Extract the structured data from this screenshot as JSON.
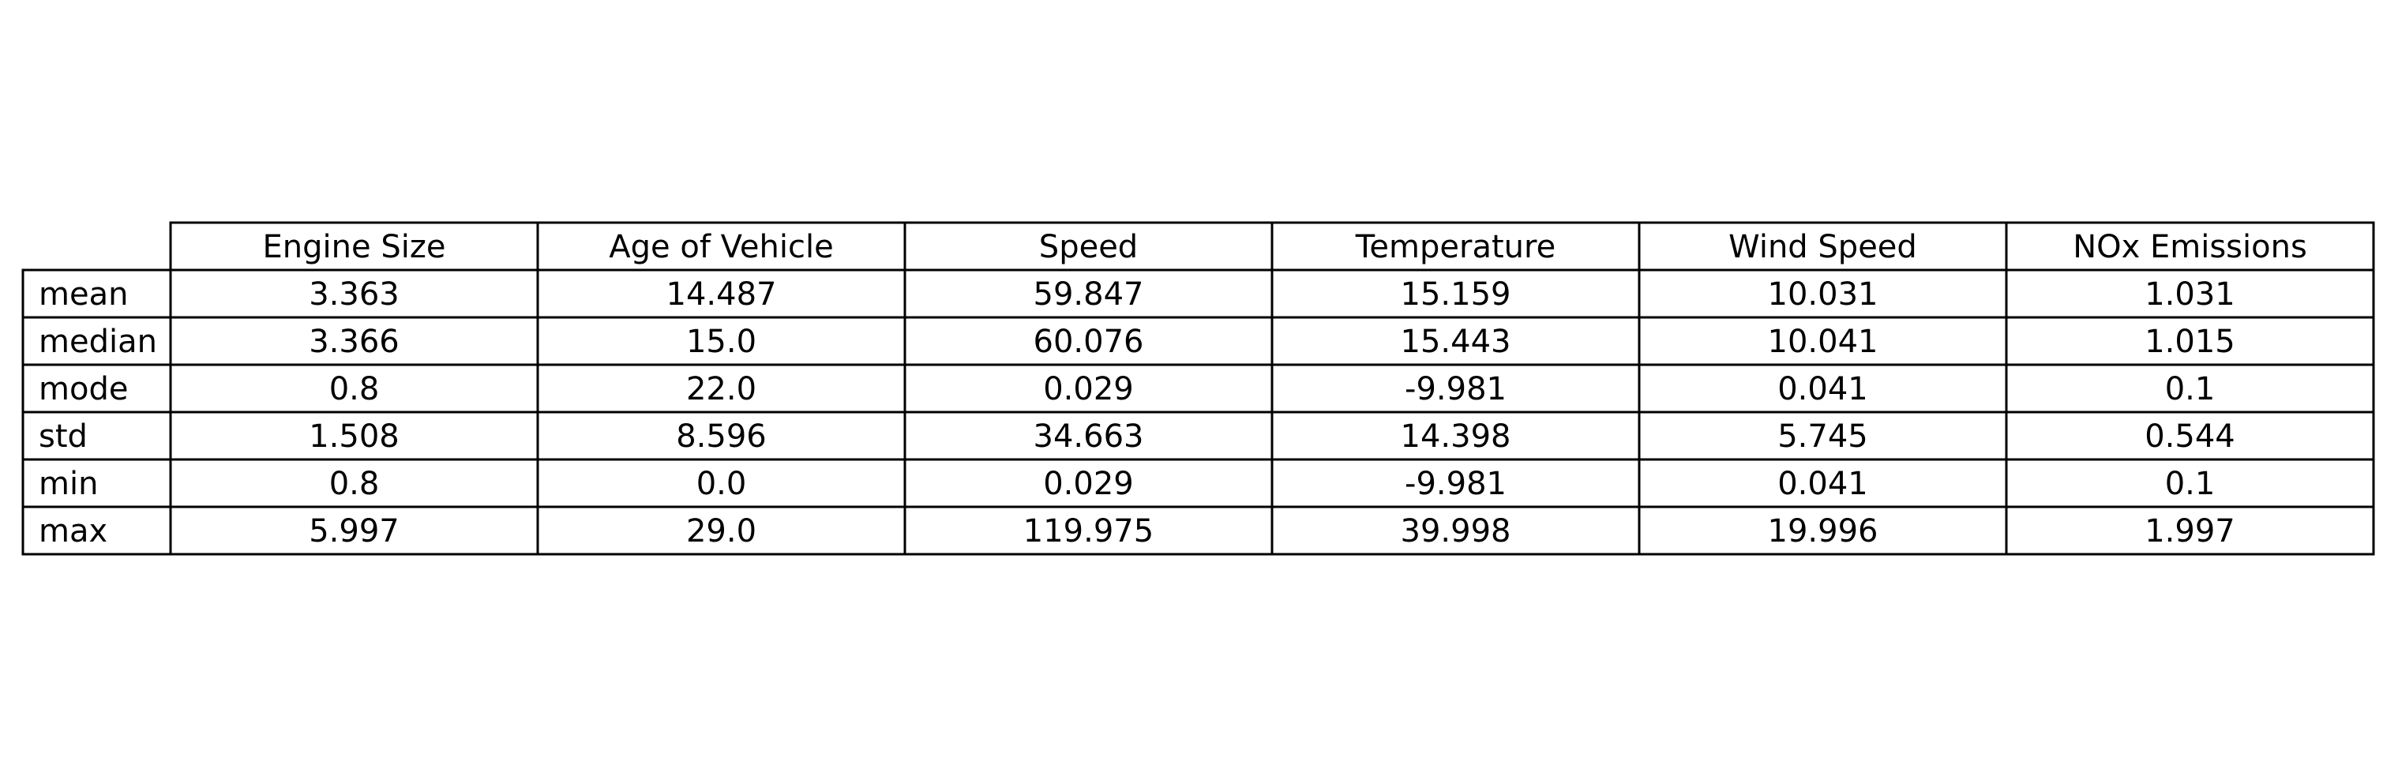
{
  "chart_data": {
    "type": "table",
    "columns": [
      "Engine Size",
      "Age of Vehicle",
      "Speed",
      "Temperature",
      "Wind Speed",
      "NOx Emissions"
    ],
    "rows": [
      {
        "label": "mean",
        "values": [
          "3.363",
          "14.487",
          "59.847",
          "15.159",
          "10.031",
          "1.031"
        ]
      },
      {
        "label": "median",
        "values": [
          "3.366",
          "15.0",
          "60.076",
          "15.443",
          "10.041",
          "1.015"
        ]
      },
      {
        "label": "mode",
        "values": [
          "0.8",
          "22.0",
          "0.029",
          "-9.981",
          "0.041",
          "0.1"
        ]
      },
      {
        "label": "std",
        "values": [
          "1.508",
          "8.596",
          "34.663",
          "14.398",
          "5.745",
          "0.544"
        ]
      },
      {
        "label": "min",
        "values": [
          "0.8",
          "0.0",
          "0.029",
          "-9.981",
          "0.041",
          "0.1"
        ]
      },
      {
        "label": "max",
        "values": [
          "5.997",
          "29.0",
          "119.975",
          "39.998",
          "19.996",
          "1.997"
        ]
      }
    ],
    "border_color": "#000000",
    "background_color": "#ffffff"
  }
}
